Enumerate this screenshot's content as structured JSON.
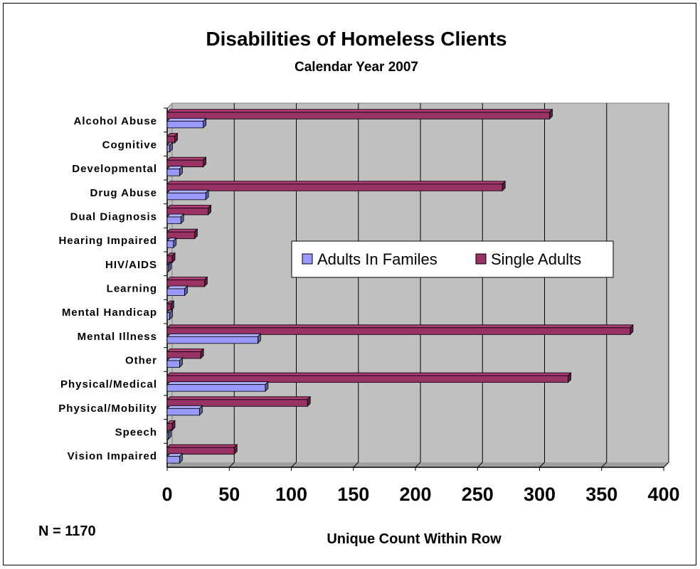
{
  "chart_data": {
    "type": "bar",
    "orientation": "horizontal",
    "title": "Disabilities of Homeless Clients",
    "subtitle": "Calendar Year 2007",
    "xlabel": "Unique Count Within Row",
    "ylabel": "",
    "xlim": [
      0,
      400
    ],
    "xticks": [
      "0",
      "50",
      "100",
      "150",
      "200",
      "250",
      "300",
      "350",
      "400"
    ],
    "grid": true,
    "legend_position": "center-right",
    "annotation": "N = 1170",
    "categories": [
      "Alcohol Abuse",
      "Cognitive",
      "Developmental",
      "Drug Abuse",
      "Dual Diagnosis",
      "Hearing Impaired",
      "HIV/AIDS",
      "Learning",
      "Mental Handicap",
      "Mental Illness",
      "Other",
      "Physical/Medical",
      "Physical/Mobility",
      "Speech",
      "Vision Impaired"
    ],
    "series": [
      {
        "name": "Adults In Familes",
        "color": "#9999ff",
        "values": [
          29,
          2,
          10,
          31,
          11,
          5,
          1,
          14,
          2,
          73,
          10,
          79,
          26,
          1,
          10
        ]
      },
      {
        "name": "Single Adults",
        "color": "#993366",
        "values": [
          308,
          6,
          29,
          270,
          33,
          22,
          4,
          30,
          3,
          373,
          27,
          323,
          113,
          4,
          54
        ]
      }
    ],
    "colors": {
      "plot_bg": "#c0c0c0",
      "grid": "#000000"
    }
  }
}
